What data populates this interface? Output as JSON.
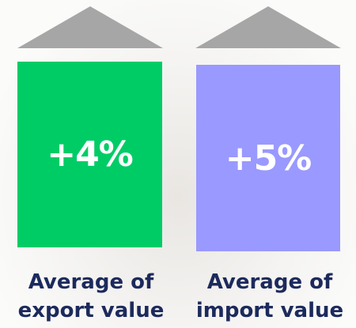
{
  "tiles": [
    {
      "value": "+4%",
      "label": "Average of export value"
    },
    {
      "value": "+5%",
      "label": "Average of import value"
    }
  ]
}
